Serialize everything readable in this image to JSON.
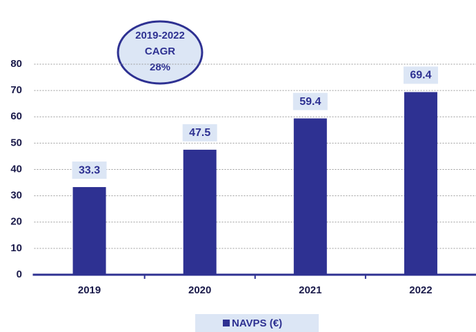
{
  "chart_data": {
    "type": "bar",
    "categories": [
      "2019",
      "2020",
      "2021",
      "2022"
    ],
    "series": [
      {
        "name": "NAVPS (€)",
        "color": "#2e3192",
        "values": [
          33.3,
          47.5,
          59.4,
          69.4
        ]
      }
    ],
    "ylim": [
      0,
      80
    ],
    "yticks": [
      0,
      10,
      20,
      30,
      40,
      50,
      60,
      70,
      80
    ],
    "grid": true,
    "annotation": [
      "2019-2022",
      "CAGR",
      "28%"
    ],
    "legend": "bottom"
  }
}
